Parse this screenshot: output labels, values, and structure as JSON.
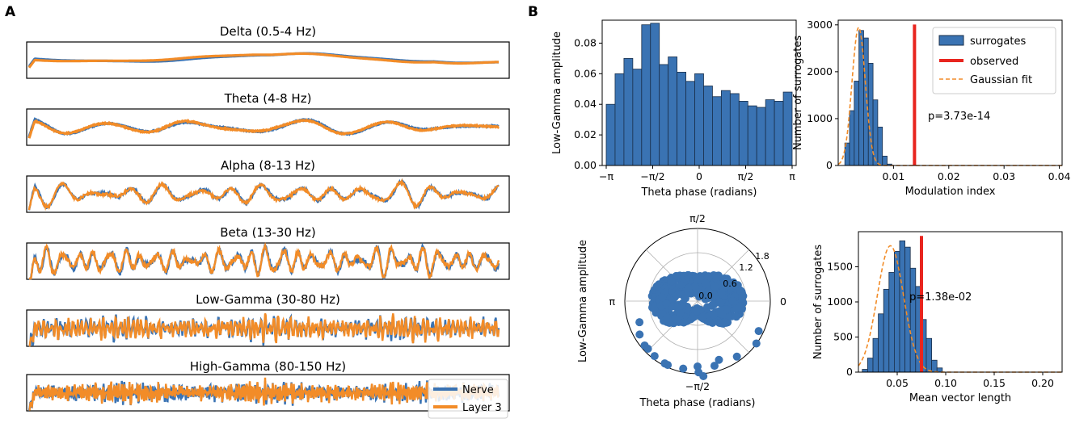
{
  "panel_a": {
    "letter": "A",
    "legend": [
      {
        "name": "Nerve",
        "color": "#3a73b3"
      },
      {
        "name": "Layer 3",
        "color": "#f28c28"
      }
    ],
    "bands": [
      {
        "title": "Delta (0.5-4 Hz)",
        "freq": 1.2,
        "amp": 0.18,
        "noise": 0.0,
        "seed": 1
      },
      {
        "title": "Theta (4-8 Hz)",
        "freq": 5,
        "amp": 0.28,
        "noise": 0.05,
        "seed": 2
      },
      {
        "title": "Alpha (8-13 Hz)",
        "freq": 14,
        "amp": 0.35,
        "noise": 0.1,
        "seed": 3
      },
      {
        "title": "Beta (13-30 Hz)",
        "freq": 30,
        "amp": 0.45,
        "noise": 0.15,
        "seed": 4
      },
      {
        "title": "Low-Gamma (30-80 Hz)",
        "freq": 110,
        "amp": 0.35,
        "noise": 0.3,
        "seed": 5
      },
      {
        "title": "High-Gamma (80-150 Hz)",
        "freq": 180,
        "amp": 0.3,
        "noise": 0.35,
        "seed": 6
      }
    ]
  },
  "panel_b": {
    "letter": "B",
    "colors": {
      "bar": "#3a73b3",
      "observed": "#e8251f",
      "fit": "#f28c28"
    },
    "legend": [
      "surrogates",
      "observed",
      "Gaussian fit"
    ]
  },
  "chart_data": [
    {
      "type": "bar",
      "id": "phase_amp_hist",
      "xlabel": "Theta phase (radians)",
      "ylabel": "Low-Gamma amplitude",
      "xlim": [
        -3.1416,
        3.1416
      ],
      "ylim": [
        0,
        0.095
      ],
      "xtick_labels": [
        "−π",
        "−π/2",
        "0",
        "π/2",
        "π"
      ],
      "yticks": [
        "0.00",
        "0.02",
        "0.04",
        "0.06",
        "0.08"
      ],
      "values": [
        0.04,
        0.06,
        0.07,
        0.063,
        0.092,
        0.093,
        0.066,
        0.071,
        0.061,
        0.055,
        0.06,
        0.052,
        0.045,
        0.049,
        0.047,
        0.042,
        0.039,
        0.038,
        0.043,
        0.042,
        0.048
      ]
    },
    {
      "type": "bar",
      "id": "mi_surrogates",
      "xlabel": "Modulation index",
      "ylabel": "Number of surrogates",
      "xlim": [
        0,
        0.0405
      ],
      "ylim": [
        0,
        3100
      ],
      "xticks": [
        0.01,
        0.02,
        0.03,
        0.04
      ],
      "xtick_labels": [
        "0.01",
        "0.02",
        "0.03",
        "0.04"
      ],
      "yticks": [
        0,
        1000,
        2000,
        3000
      ],
      "ytick_labels": [
        "0",
        "1000",
        "2000",
        "3000"
      ],
      "bin_start": 0.0012,
      "bin_width": 0.00085,
      "values": [
        480,
        1170,
        1800,
        2880,
        2720,
        2180,
        1400,
        820,
        200,
        30
      ],
      "observed": 0.0138,
      "fit": {
        "mu": 0.0037,
        "sigma": 0.0012,
        "peak": 2950
      },
      "annotation": "p=3.73e-14"
    },
    {
      "type": "scatter",
      "id": "polar_amp",
      "xlabel": "Theta phase (radians)",
      "ylabel": "Low-Gamma amplitude",
      "rlim": [
        0,
        1.8
      ],
      "rticks": [
        "0.0",
        "0.6",
        "1.2",
        "1.8"
      ],
      "angle_labels": [
        "0",
        "π/2",
        "π",
        "−π/2"
      ]
    },
    {
      "type": "bar",
      "id": "mvl_surrogates",
      "xlabel": "Mean vector length",
      "ylabel": "Number of surrogates",
      "xlim": [
        0.01,
        0.22
      ],
      "ylim": [
        0,
        2000
      ],
      "xticks": [
        0.05,
        0.1,
        0.15,
        0.2
      ],
      "xtick_labels": [
        "0.05",
        "0.10",
        "0.15",
        "0.20"
      ],
      "yticks": [
        0,
        500,
        1000,
        1500
      ],
      "ytick_labels": [
        "0",
        "500",
        "1000",
        "1500"
      ],
      "bin_start": 0.014,
      "bin_width": 0.0055,
      "values": [
        40,
        200,
        480,
        830,
        1180,
        1420,
        1720,
        1870,
        1780,
        1480,
        1220,
        750,
        480,
        170,
        60
      ],
      "observed": 0.075,
      "fit": {
        "mu": 0.043,
        "sigma": 0.0135,
        "peak": 1800
      },
      "annotation": "p=1.38e-02"
    }
  ]
}
